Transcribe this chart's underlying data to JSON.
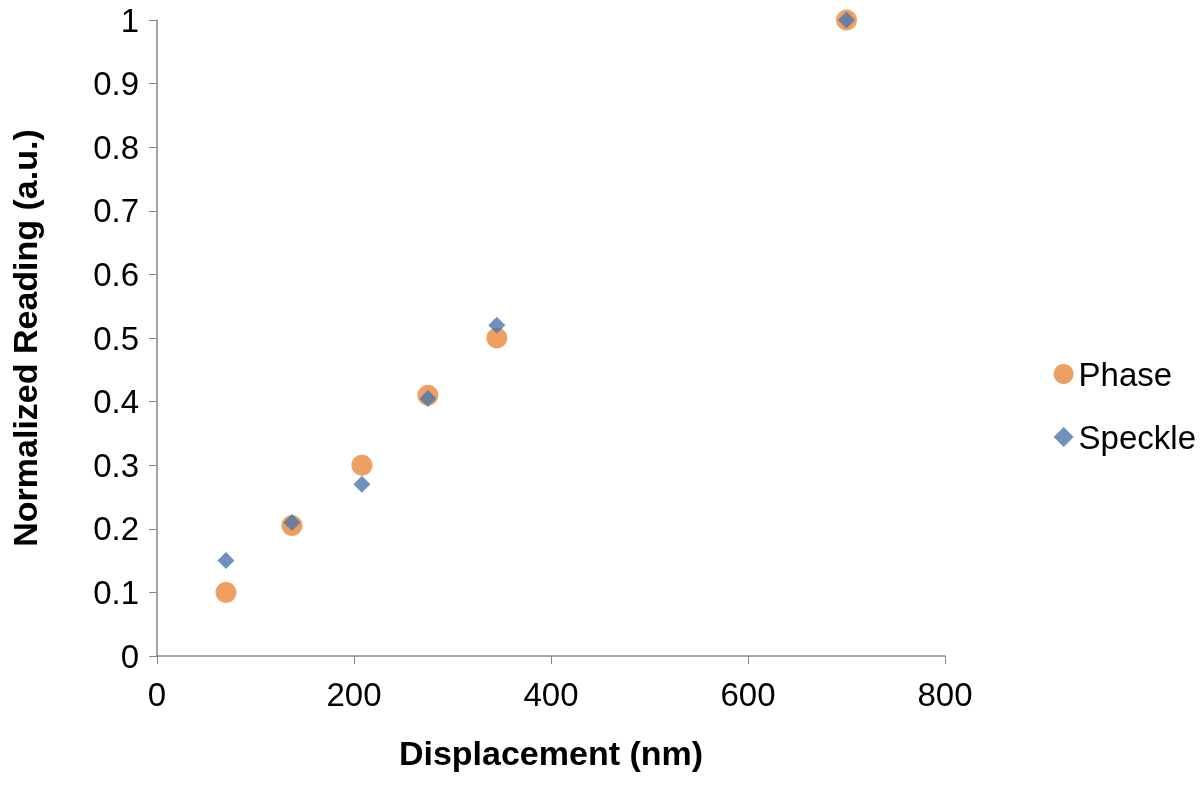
{
  "chart_data": {
    "type": "scatter",
    "xlabel": "Displacement (nm)",
    "ylabel": "Normalized Reading (a.u.)",
    "xlim": [
      0,
      800
    ],
    "xticks": [
      0,
      200,
      400,
      600,
      800
    ],
    "ylim": [
      0,
      1
    ],
    "yticks": [
      0,
      0.1,
      0.2,
      0.3,
      0.4,
      0.5,
      0.6,
      0.7,
      0.8,
      0.9,
      1
    ],
    "grid": false,
    "legend": "right",
    "series": [
      {
        "name": "Phase",
        "color": "#e8883a",
        "marker": "circle",
        "x": [
          70,
          137,
          208,
          275,
          345,
          700
        ],
        "values": [
          0.1,
          0.205,
          0.3,
          0.41,
          0.5,
          1
        ]
      },
      {
        "name": "Speckle",
        "color": "#4a76b0",
        "marker": "diamond",
        "x": [
          70,
          137,
          208,
          275,
          345,
          700
        ],
        "values": [
          0.15,
          0.21,
          0.27,
          0.405,
          0.52,
          1
        ]
      }
    ]
  }
}
